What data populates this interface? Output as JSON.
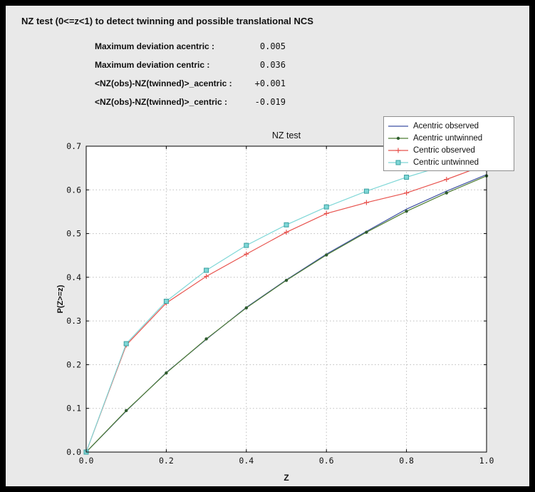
{
  "window": {
    "frame_bg": "#000000",
    "panel_bg": "#e9e9e9"
  },
  "header": {
    "title": "NZ test (0<=z<1) to detect twinning and possible translational NCS"
  },
  "stats": {
    "rows": [
      {
        "label": "Maximum deviation acentric :",
        "value": "0.005"
      },
      {
        "label": "Maximum deviation centric :",
        "value": "0.036"
      },
      {
        "label": "<NZ(obs)-NZ(twinned)>_acentric :",
        "value": "+0.001"
      },
      {
        "label": "<NZ(obs)-NZ(twinned)>_centric :",
        "value": "-0.019"
      }
    ]
  },
  "chart_data": {
    "type": "line",
    "title": "NZ test",
    "xlabel": "Z",
    "ylabel": "P(Z>=z)",
    "xlim": [
      0.0,
      1.0
    ],
    "ylim": [
      0.0,
      0.7
    ],
    "xticks": [
      0.0,
      0.2,
      0.4,
      0.6,
      0.8,
      1.0
    ],
    "yticks": [
      0.0,
      0.1,
      0.2,
      0.3,
      0.4,
      0.5,
      0.6,
      0.7
    ],
    "grid": true,
    "grid_style": "dashed",
    "legend_position": "upper right",
    "plot_bg": "#ffffff",
    "x": [
      0.0,
      0.1,
      0.2,
      0.3,
      0.4,
      0.5,
      0.6,
      0.7,
      0.8,
      0.9,
      1.0
    ],
    "series": [
      {
        "name": "Acentric observed",
        "color": "#3f51a3",
        "marker": "none",
        "marker_color": "#3f51a3",
        "values": [
          0.0,
          0.094,
          0.182,
          0.258,
          0.331,
          0.394,
          0.453,
          0.505,
          0.556,
          0.597,
          0.635
        ]
      },
      {
        "name": "Acentric untwinned",
        "color": "#4e7d33",
        "marker": "dot",
        "marker_color": "#2f5d2f",
        "values": [
          0.0,
          0.095,
          0.181,
          0.259,
          0.33,
          0.393,
          0.451,
          0.503,
          0.551,
          0.593,
          0.632
        ]
      },
      {
        "name": "Centric observed",
        "color": "#e8534e",
        "marker": "plus",
        "marker_color": "#e8534e",
        "values": [
          0.0,
          0.245,
          0.341,
          0.402,
          0.453,
          0.503,
          0.546,
          0.571,
          0.593,
          0.624,
          0.658
        ]
      },
      {
        "name": "Centric untwinned",
        "color": "#7fd7d7",
        "marker": "square",
        "marker_color": "#7fd7d7",
        "marker_edge": "#3aa0a0",
        "values": [
          0.0,
          0.248,
          0.345,
          0.416,
          0.473,
          0.52,
          0.561,
          0.597,
          0.629,
          0.657,
          0.683
        ]
      }
    ]
  }
}
